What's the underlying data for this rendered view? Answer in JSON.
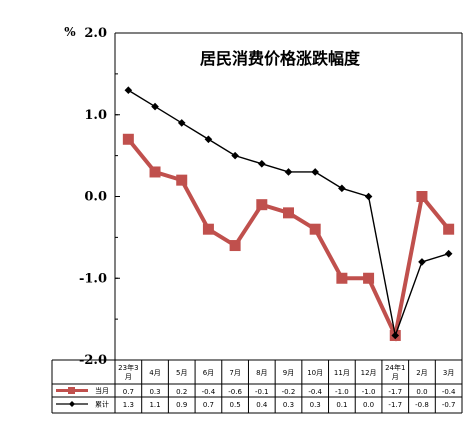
{
  "chart_data": {
    "type": "line",
    "title": "居民消费价格涨跌幅度",
    "unit": "%",
    "categories": [
      "23年3月",
      "4月",
      "5月",
      "6月",
      "7月",
      "8月",
      "9月",
      "10月",
      "11月",
      "12月",
      "24年1月",
      "2月",
      "3月"
    ],
    "ylim": [
      -2.0,
      2.0
    ],
    "yticks": [
      2.0,
      1.0,
      0.0,
      -1.0,
      -2.0
    ],
    "ytick_labels": [
      "2.0",
      "1.0",
      "0.0",
      "-1.0",
      "-2.0"
    ],
    "series": [
      {
        "name": "当月",
        "color": "#c0504d",
        "values": [
          0.7,
          0.3,
          0.2,
          -0.4,
          -0.6,
          -0.1,
          -0.2,
          -0.4,
          -1.0,
          -1.0,
          -1.7,
          0.0,
          -0.4
        ],
        "labels": [
          "0.7",
          "0.3",
          "0.2",
          "-0.4",
          "-0.6",
          "-0.1",
          "-0.2",
          "-0.4",
          "-1.0",
          "-1.0",
          "-1.7",
          "0.0",
          "-0.4"
        ]
      },
      {
        "name": "累计",
        "color": "#000000",
        "values": [
          1.3,
          1.1,
          0.9,
          0.7,
          0.5,
          0.4,
          0.3,
          0.3,
          0.1,
          0.0,
          -1.7,
          -0.8,
          -0.7
        ],
        "labels": [
          "1.3",
          "1.1",
          "0.9",
          "0.7",
          "0.5",
          "0.4",
          "0.3",
          "0.3",
          "0.1",
          "0.0",
          "-1.7",
          "-0.8",
          "-0.7"
        ]
      }
    ],
    "grid": false,
    "legend": "bottom-left table"
  }
}
